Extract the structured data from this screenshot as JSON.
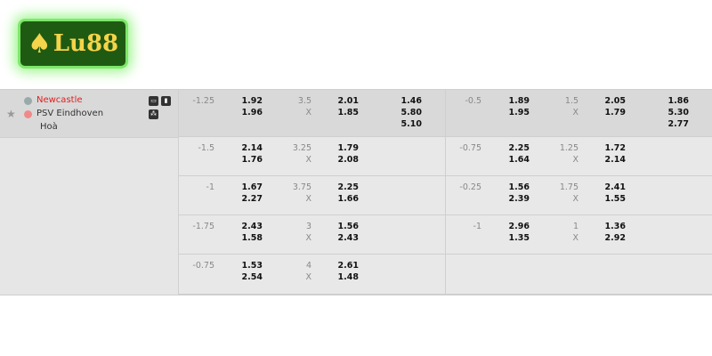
{
  "logo": {
    "text": "Lu88"
  },
  "match": {
    "home": "Newcastle",
    "away": "PSV Eindhoven",
    "draw": "Hoà",
    "home_color": "#e02020"
  },
  "rows": [
    {
      "a": {
        "hcap": "-1.25",
        "h1": "1.92",
        "h2": "1.96",
        "ou": "3.5",
        "ox": "X",
        "o1": "2.01",
        "o2": "1.85",
        "x1": "1.46",
        "x2": "5.80",
        "x3": "5.10"
      },
      "b": {
        "hcap": "-0.5",
        "h1": "1.89",
        "h2": "1.95",
        "ou": "1.5",
        "ox": "X",
        "o1": "2.05",
        "o2": "1.79",
        "x1": "1.86",
        "x2": "5.30",
        "x3": "2.77"
      }
    },
    {
      "a": {
        "hcap": "-1.5",
        "h1": "2.14",
        "h2": "1.76",
        "ou": "3.25",
        "ox": "X",
        "o1": "1.79",
        "o2": "2.08"
      },
      "b": {
        "hcap": "-0.75",
        "h1": "2.25",
        "h2": "1.64",
        "ou": "1.25",
        "ox": "X",
        "o1": "1.72",
        "o2": "2.14"
      }
    },
    {
      "a": {
        "hcap": "-1",
        "h1": "1.67",
        "h2": "2.27",
        "ou": "3.75",
        "ox": "X",
        "o1": "2.25",
        "o2": "1.66"
      },
      "b": {
        "hcap": "-0.25",
        "h1": "1.56",
        "h2": "2.39",
        "ou": "1.75",
        "ox": "X",
        "o1": "2.41",
        "o2": "1.55"
      }
    },
    {
      "a": {
        "hcap": "-1.75",
        "h1": "2.43",
        "h2": "1.58",
        "ou": "3",
        "ox": "X",
        "o1": "1.56",
        "o2": "2.43"
      },
      "b": {
        "hcap": "-1",
        "h1": "2.96",
        "h2": "1.35",
        "ou": "1",
        "ox": "X",
        "o1": "1.36",
        "o2": "2.92"
      }
    },
    {
      "a": {
        "hcap": "-0.75",
        "h1": "1.53",
        "h2": "2.54",
        "ou": "4",
        "ox": "X",
        "o1": "2.61",
        "o2": "1.48"
      },
      "b": null
    }
  ]
}
